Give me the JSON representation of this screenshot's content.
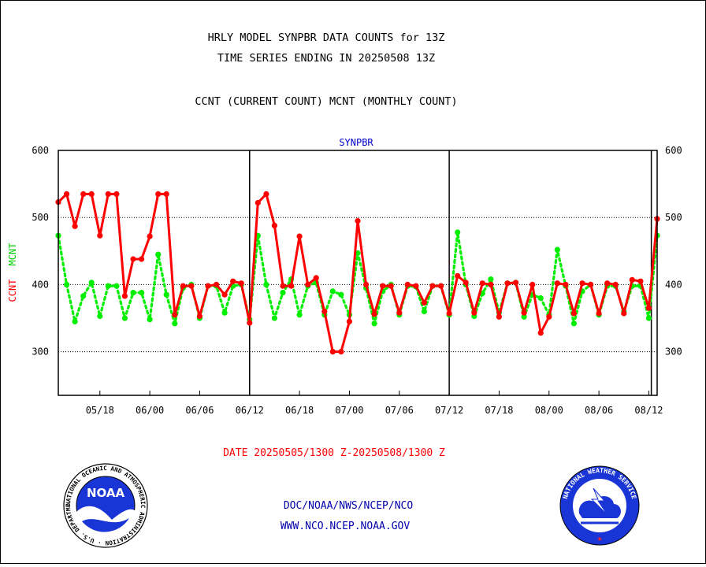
{
  "header": {
    "title_line1": "HRLY MODEL SYNPBR DATA COUNTS for 13Z",
    "title_line2": "TIME SERIES ENDING IN 20250508 13Z",
    "subtitle": "CCNT (CURRENT COUNT) MCNT (MONTHLY COUNT)"
  },
  "footer": {
    "date_range": "DATE 20250505/1300 Z-20250508/1300 Z",
    "org_line": "DOC/NOAA/NWS/NCEP/NCO",
    "url_line": "WWW.NCO.NCEP.NOAA.GOV"
  },
  "logos": {
    "noaa": {
      "center_text": "NOAA",
      "ring_text": "NATIONAL OCEANIC AND ATMOSPHERIC ADMINISTRATION · U.S. DEPARTMENT OF COMMERCE ·"
    },
    "nws": {
      "ring_text": "NATIONAL WEATHER SERVICE"
    }
  },
  "colors": {
    "ccnt": "#ff0000",
    "mcnt": "#00ee00",
    "panel_label": "#0000cc",
    "footer_blue": "#0000aa",
    "date_red": "#ff0000"
  },
  "chart_data": {
    "type": "line",
    "panel_label": "SYNPBR",
    "ylabel_left_1": "CCNT",
    "ylabel_left_2": "MCNT",
    "ylim": [
      235,
      600
    ],
    "yticks": [
      300,
      400,
      500,
      600
    ],
    "x_tick_labels": [
      "05/18",
      "06/00",
      "06/06",
      "06/12",
      "06/18",
      "07/00",
      "07/06",
      "07/12",
      "07/18",
      "08/00",
      "08/06",
      "08/12"
    ],
    "x_tick_positions": [
      5,
      11,
      17,
      23,
      29,
      35,
      41,
      47,
      53,
      59,
      65,
      71
    ],
    "x_range": [
      0,
      72
    ],
    "day_boundaries": [
      23,
      47,
      71.3
    ],
    "grid": "horizontal dotted at 300/400/500",
    "series": [
      {
        "name": "CCNT",
        "style": "solid",
        "values": [
          523,
          535,
          487,
          535,
          535,
          473,
          535,
          535,
          383,
          438,
          438,
          472,
          535,
          535,
          355,
          398,
          398,
          353,
          398,
          400,
          385,
          405,
          402,
          343,
          522,
          535,
          488,
          398,
          398,
          472,
          400,
          410,
          360,
          300,
          300,
          345,
          495,
          400,
          356,
          398,
          398,
          358,
          400,
          398,
          373,
          398,
          398,
          357,
          413,
          403,
          358,
          402,
          400,
          352,
          402,
          403,
          358,
          400,
          328,
          352,
          402,
          400,
          357,
          402,
          400,
          357,
          402,
          400,
          357,
          407,
          405,
          365,
          498
        ]
      },
      {
        "name": "MCNT",
        "style": "dotted",
        "values": [
          473,
          400,
          345,
          383,
          403,
          353,
          398,
          398,
          350,
          388,
          388,
          348,
          445,
          385,
          342,
          395,
          400,
          350,
          398,
          398,
          358,
          398,
          400,
          348,
          473,
          400,
          350,
          388,
          408,
          355,
          398,
          403,
          355,
          390,
          385,
          355,
          447,
          395,
          342,
          390,
          400,
          355,
          398,
          397,
          360,
          398,
          398,
          355,
          478,
          400,
          353,
          387,
          408,
          358,
          402,
          403,
          352,
          385,
          380,
          355,
          452,
          398,
          342,
          390,
          400,
          355,
          398,
          398,
          360,
          398,
          398,
          350,
          473
        ]
      }
    ]
  }
}
